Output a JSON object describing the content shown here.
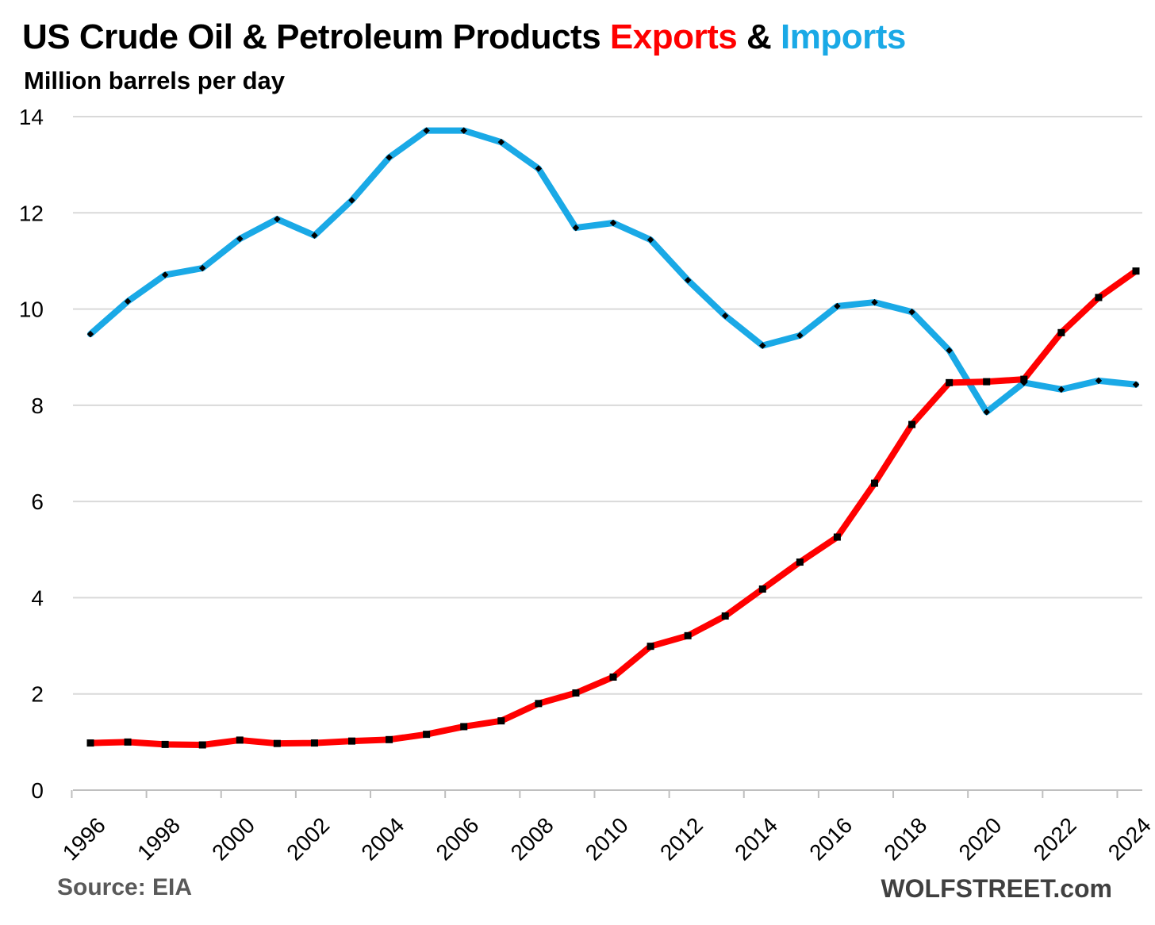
{
  "title": {
    "prefix": "US Crude Oil & Petroleum Products ",
    "exports_word": "Exports",
    "middle": " & ",
    "imports_word": "Imports"
  },
  "subtitle": "Million barrels per day",
  "source": "Source: EIA",
  "brand": "WOLFSTREET.com",
  "colors": {
    "exports": "#ff0000",
    "imports": "#1aa9e6",
    "grid": "#d9d9d9",
    "marker": "#000000"
  },
  "chart_data": {
    "type": "line",
    "title": "US Crude Oil & Petroleum Products Exports & Imports",
    "ylabel": "Million barrels per day",
    "xlabel": "",
    "ylim": [
      0,
      14
    ],
    "yticks": [
      0,
      2,
      4,
      6,
      8,
      10,
      12,
      14
    ],
    "xtick_labels": [
      "1996",
      "1998",
      "2000",
      "2002",
      "2004",
      "2006",
      "2008",
      "2010",
      "2012",
      "2014",
      "2016",
      "2018",
      "2020",
      "2022",
      "2024"
    ],
    "x": [
      1996,
      1997,
      1998,
      1999,
      2000,
      2001,
      2002,
      2003,
      2004,
      2005,
      2006,
      2007,
      2008,
      2009,
      2010,
      2011,
      2012,
      2013,
      2014,
      2015,
      2016,
      2017,
      2018,
      2019,
      2020,
      2021,
      2022,
      2023,
      2024
    ],
    "series": [
      {
        "name": "Imports",
        "values": [
          9.48,
          10.16,
          10.71,
          10.85,
          11.46,
          11.87,
          11.53,
          12.26,
          13.15,
          13.71,
          13.71,
          13.47,
          12.92,
          11.69,
          11.79,
          11.44,
          10.6,
          9.86,
          9.24,
          9.45,
          10.06,
          10.14,
          9.94,
          9.14,
          7.86,
          8.47,
          8.33,
          8.51,
          8.43
        ]
      },
      {
        "name": "Exports",
        "values": [
          0.98,
          1.0,
          0.95,
          0.94,
          1.04,
          0.97,
          0.98,
          1.02,
          1.05,
          1.16,
          1.32,
          1.44,
          1.8,
          2.02,
          2.35,
          2.99,
          3.21,
          3.62,
          4.18,
          4.74,
          5.26,
          6.38,
          7.6,
          8.47,
          8.49,
          8.54,
          9.51,
          10.24,
          10.79
        ]
      }
    ]
  }
}
